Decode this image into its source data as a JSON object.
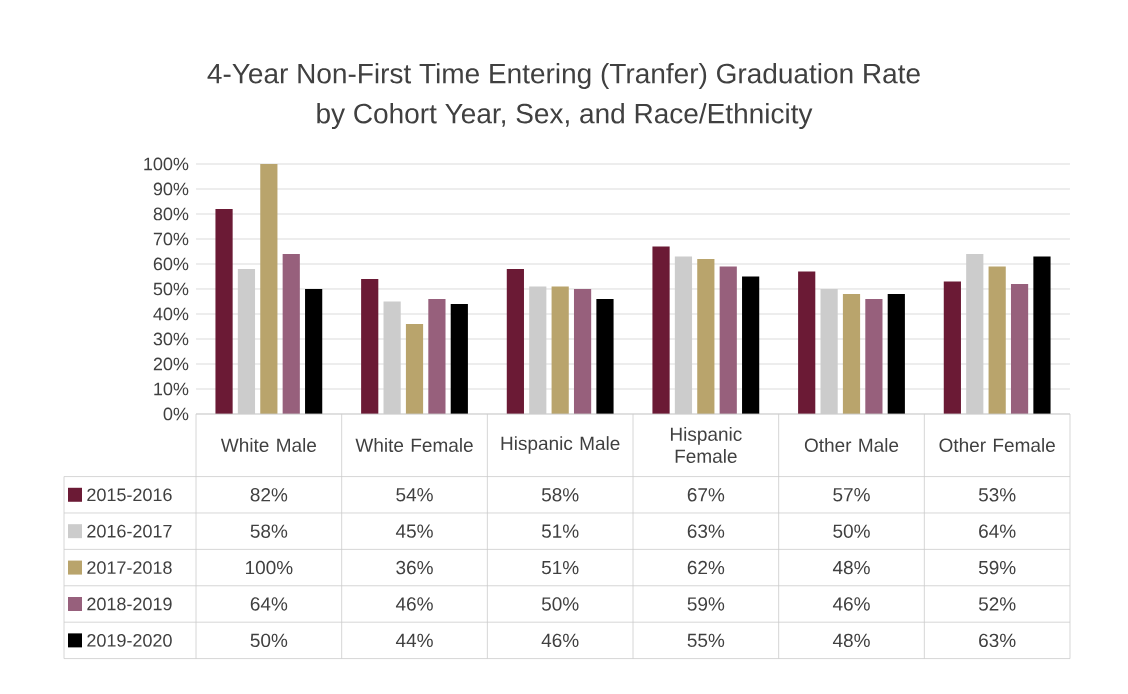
{
  "chart_data": {
    "type": "bar",
    "title": "4-Year Non-First Time Entering (Tranfer) Graduation Rate",
    "subtitle": "by Cohort Year, Sex, and Race/Ethnicity",
    "categories": [
      "White Male",
      "White Female",
      "Hispanic Male",
      "Hispanic Female",
      "Other Male",
      "Other Female"
    ],
    "ylim": [
      0,
      100
    ],
    "yticks": [
      {
        "value": 0,
        "label": "0%"
      },
      {
        "value": 10,
        "label": "10%"
      },
      {
        "value": 20,
        "label": "20%"
      },
      {
        "value": 30,
        "label": "30%"
      },
      {
        "value": 40,
        "label": "40%"
      },
      {
        "value": 50,
        "label": "50%"
      },
      {
        "value": 60,
        "label": "60%"
      },
      {
        "value": 70,
        "label": "70%"
      },
      {
        "value": 80,
        "label": "80%"
      },
      {
        "value": 90,
        "label": "90%"
      },
      {
        "value": 100,
        "label": "100%"
      }
    ],
    "grid": "y",
    "legend": "bottom left",
    "series": [
      {
        "name": "2015-2016",
        "color": "#6b1a35",
        "values": [
          82,
          54,
          58,
          67,
          57,
          53
        ],
        "value_labels": [
          "82%",
          "54%",
          "58%",
          "67%",
          "57%",
          "53%"
        ]
      },
      {
        "name": "2016-2017",
        "color": "#cccccc",
        "values": [
          58,
          45,
          51,
          63,
          50,
          64
        ],
        "value_labels": [
          "58%",
          "45%",
          "51%",
          "63%",
          "50%",
          "64%"
        ]
      },
      {
        "name": "2017-2018",
        "color": "#b9a46c",
        "values": [
          100,
          36,
          51,
          62,
          48,
          59
        ],
        "value_labels": [
          "100%",
          "36%",
          "51%",
          "62%",
          "48%",
          "59%"
        ]
      },
      {
        "name": "2018-2019",
        "color": "#97607c",
        "values": [
          64,
          46,
          50,
          59,
          46,
          52
        ],
        "value_labels": [
          "64%",
          "46%",
          "50%",
          "59%",
          "46%",
          "52%"
        ]
      },
      {
        "name": "2019-2020",
        "color": "#000000",
        "values": [
          50,
          44,
          46,
          55,
          48,
          63
        ],
        "value_labels": [
          "50%",
          "44%",
          "46%",
          "55%",
          "48%",
          "63%"
        ]
      }
    ]
  }
}
